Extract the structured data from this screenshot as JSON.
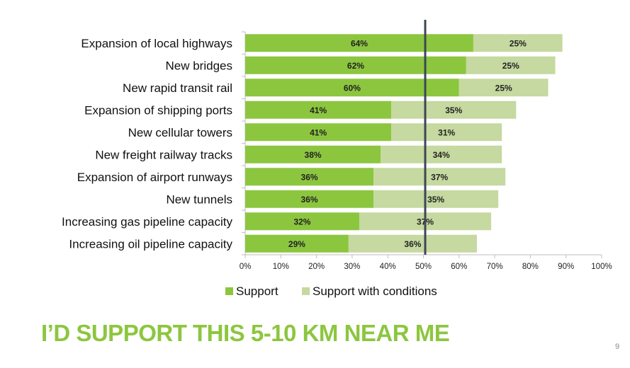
{
  "slide": {
    "headline": "I’D SUPPORT THIS 5-10 KM NEAR ME",
    "page_number": "9",
    "headline_color": "#8cc63f"
  },
  "chart_data": {
    "type": "bar",
    "orientation": "horizontal",
    "stacked": true,
    "categories": [
      "Expansion of local highways",
      "New bridges",
      "New rapid transit rail",
      "Expansion of shipping ports",
      "New cellular towers",
      "New freight railway tracks",
      "Expansion of airport runways",
      "New tunnels",
      "Increasing gas pipeline capacity",
      "Increasing oil pipeline capacity"
    ],
    "series": [
      {
        "name": "Support",
        "color": "#8cc63f",
        "values": [
          64,
          62,
          60,
          41,
          41,
          38,
          36,
          36,
          32,
          29
        ],
        "labels": [
          "64%",
          "62%",
          "60%",
          "41%",
          "41%",
          "38%",
          "36%",
          "36%",
          "32%",
          "29%"
        ]
      },
      {
        "name": "Support with conditions",
        "color": "#c5d9a0",
        "values": [
          25,
          25,
          25,
          35,
          31,
          34,
          37,
          35,
          37,
          36
        ],
        "labels": [
          "25%",
          "25%",
          "25%",
          "35%",
          "31%",
          "34%",
          "37%",
          "35%",
          "37%",
          "36%"
        ]
      }
    ],
    "xlim": [
      0,
      100
    ],
    "x_ticks": [
      0,
      10,
      20,
      30,
      40,
      50,
      60,
      70,
      80,
      90,
      100
    ],
    "x_tick_labels": [
      "0%",
      "10%",
      "20%",
      "30%",
      "40%",
      "50%",
      "60%",
      "70%",
      "80%",
      "90%",
      "100%"
    ],
    "reference_line": {
      "value": 50.5,
      "color": "#3d4654"
    },
    "grid": false,
    "legend": "bottom"
  }
}
